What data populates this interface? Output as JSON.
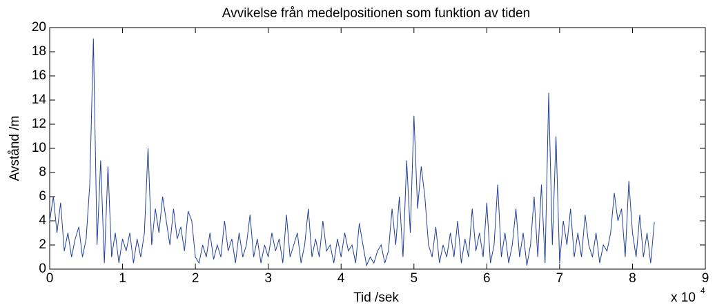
{
  "chart_data": {
    "type": "line",
    "title": "Avvikelse från medelpositionen som funktion av tiden",
    "x_label": "Tid /sek",
    "y_label": "Avstånd /m",
    "x_multiplier": "x 10",
    "x_multiplier_exponent": "4",
    "xlim": [
      0,
      90000
    ],
    "xticks": [
      0,
      {
        "value": 10000,
        "label": "1"
      },
      {
        "value": 20000,
        "label": "2"
      },
      {
        "value": 30000,
        "label": "3"
      },
      {
        "value": 40000,
        "label": "4"
      },
      {
        "value": 50000,
        "label": "5"
      },
      {
        "value": 60000,
        "label": "6"
      },
      {
        "value": 70000,
        "label": "7"
      },
      {
        "value": 80000,
        "label": "8"
      },
      {
        "value": 90000,
        "label": "9"
      }
    ],
    "ylim": [
      0,
      20
    ],
    "yticks": [
      0,
      2,
      4,
      6,
      8,
      10,
      12,
      14,
      16,
      18,
      20
    ],
    "grid": false,
    "x": [
      0,
      500,
      1000,
      1500,
      2000,
      2500,
      3000,
      3500,
      4000,
      4500,
      5000,
      5500,
      6000,
      6500,
      7000,
      7500,
      8000,
      8500,
      9000,
      9500,
      10000,
      10500,
      11000,
      11500,
      12000,
      12500,
      13000,
      13500,
      14000,
      14500,
      15000,
      15500,
      16000,
      16500,
      17000,
      17500,
      18000,
      18500,
      19000,
      19500,
      20000,
      20500,
      21000,
      21500,
      22000,
      22500,
      23000,
      23500,
      24000,
      24500,
      25000,
      25500,
      26000,
      26500,
      27000,
      27500,
      28000,
      28500,
      29000,
      29500,
      30000,
      30500,
      31000,
      31500,
      32000,
      32500,
      33000,
      33500,
      34000,
      34500,
      35000,
      35500,
      36000,
      36500,
      37000,
      37500,
      38000,
      38500,
      39000,
      39500,
      40000,
      40500,
      41000,
      41500,
      42000,
      42500,
      43000,
      43500,
      44000,
      44500,
      45000,
      45500,
      46000,
      46500,
      47000,
      47500,
      48000,
      48500,
      49000,
      49500,
      50000,
      50500,
      51000,
      51500,
      52000,
      52500,
      53000,
      53500,
      54000,
      54500,
      55000,
      55500,
      56000,
      56500,
      57000,
      57500,
      58000,
      58500,
      59000,
      59500,
      60000,
      60500,
      61000,
      61500,
      62000,
      62500,
      63000,
      63500,
      64000,
      64500,
      65000,
      65500,
      66000,
      66500,
      67000,
      67500,
      68000,
      68500,
      69000,
      69500,
      70000,
      70500,
      71000,
      71500,
      72000,
      72500,
      73000,
      73500,
      74000,
      74500,
      75000,
      75500,
      76000,
      76500,
      77000,
      77500,
      78000,
      78500,
      79000,
      79500,
      80000,
      80500,
      81000,
      81500,
      82000,
      82500,
      83000
    ],
    "series": [
      {
        "name": "Avvikelse",
        "color": "#1f3f9a",
        "values": [
          4,
          6,
          3,
          5.5,
          1.5,
          3,
          1,
          2.5,
          3.5,
          1,
          2.5,
          7,
          19.1,
          2,
          9,
          0.5,
          8.5,
          1,
          3,
          0.5,
          2.5,
          1.5,
          3,
          0.5,
          2.5,
          1,
          3,
          10,
          2,
          5,
          3,
          6,
          4,
          2,
          5,
          2.5,
          3.5,
          1.5,
          4.8,
          4,
          1,
          0.5,
          2,
          1,
          3,
          0.8,
          2,
          1,
          4,
          1.5,
          2.5,
          0.5,
          3,
          1,
          2,
          4.5,
          1,
          2.5,
          0.5,
          2,
          1,
          3,
          1.5,
          2.5,
          0.5,
          4.5,
          1,
          2,
          3,
          0.5,
          2,
          5,
          1,
          2.5,
          1,
          4,
          1.5,
          2,
          0.5,
          2.5,
          1,
          3,
          1.5,
          2,
          0.5,
          3.8,
          2,
          0.3,
          1,
          0.5,
          1.5,
          2,
          0.5,
          1.5,
          5,
          2,
          6,
          1,
          9,
          3,
          12.7,
          5,
          8.5,
          6,
          2,
          1,
          3.5,
          0.5,
          2,
          1,
          3,
          1,
          4,
          0.5,
          2.5,
          1,
          5,
          1.5,
          3,
          1,
          5.5,
          0.5,
          2,
          7,
          1,
          3,
          0.5,
          2,
          5,
          1,
          3,
          0.3,
          2,
          6,
          1,
          7,
          0.5,
          14.6,
          2,
          11,
          0.5,
          4,
          2,
          5,
          1,
          3,
          1,
          4.5,
          2,
          1,
          3,
          0.5,
          2,
          1.5,
          3,
          6.3,
          4,
          5,
          1,
          7.3,
          3,
          1,
          4.5,
          1,
          3,
          0.5,
          3.9
        ]
      }
    ]
  }
}
